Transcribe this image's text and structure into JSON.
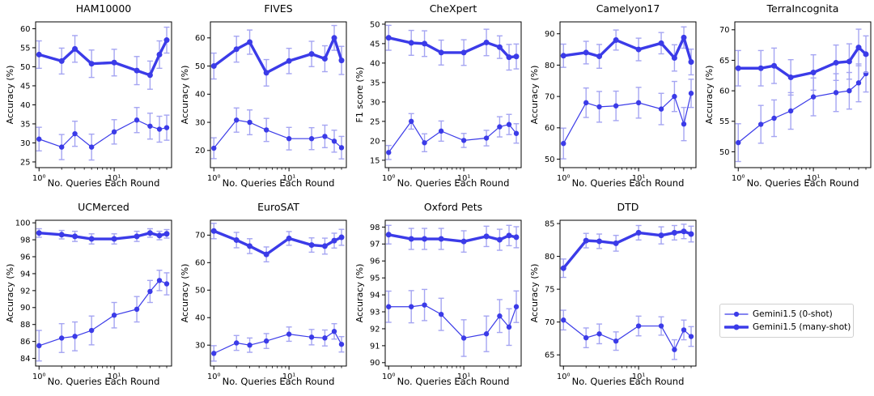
{
  "figure": {
    "xscale": "log",
    "xlim": [
      0.9,
      58
    ],
    "x_major_ticks": [
      {
        "value": 1,
        "label": "10⁰"
      },
      {
        "value": 10,
        "label": "10¹"
      }
    ],
    "x_minor_ticks": [
      2,
      3,
      4,
      5,
      6,
      7,
      8,
      9,
      20,
      30,
      40,
      50
    ]
  },
  "colors": {
    "line": "#3b3be8",
    "errorbar": "#a5a5f2",
    "axis": "#000000",
    "text": "#000000",
    "legend_border": "#d0d0d0"
  },
  "legend": {
    "items": [
      {
        "label": "Gemini1.5 (0-shot)",
        "style": "thin"
      },
      {
        "label": "Gemini1.5 (many-shot)",
        "style": "thick"
      }
    ]
  },
  "chart_data": [
    {
      "type": "line",
      "title": "HAM10000",
      "ylabel": "Accuracy (%)",
      "xlabel": "No. Queries Each Round",
      "x": [
        1,
        2,
        3,
        5,
        10,
        20,
        30,
        40,
        50
      ],
      "ylim": [
        23.5,
        61.8
      ],
      "yticks": [
        25,
        30,
        35,
        40,
        45,
        50,
        55,
        60
      ],
      "series": [
        {
          "name": "Gemini1.5 (0-shot)",
          "style": "thin",
          "values": [
            31.0,
            28.9,
            32.4,
            28.9,
            32.9,
            36.0,
            34.4,
            33.6,
            34.0
          ],
          "err": [
            3.1,
            3.3,
            3.3,
            3.4,
            3.2,
            3.3,
            3.4,
            3.4,
            3.3
          ]
        },
        {
          "name": "Gemini1.5 (many-shot)",
          "style": "thick",
          "values": [
            53.2,
            51.5,
            54.7,
            50.8,
            51.1,
            49.0,
            47.8,
            53.2,
            57.0
          ],
          "err": [
            3.6,
            3.4,
            3.5,
            3.6,
            3.5,
            3.7,
            3.7,
            3.6,
            3.4
          ]
        }
      ]
    },
    {
      "type": "line",
      "title": "FIVES",
      "ylabel": "Accuracy (%)",
      "xlabel": "No. Queries Each Round",
      "x": [
        1,
        2,
        3,
        5,
        10,
        20,
        30,
        40,
        50
      ],
      "ylim": [
        13.9,
        65.7
      ],
      "yticks": [
        20,
        30,
        40,
        50,
        60
      ],
      "series": [
        {
          "name": "Gemini1.5 (0-shot)",
          "style": "thin",
          "values": [
            20.8,
            30.8,
            30.0,
            27.3,
            24.2,
            24.2,
            25.0,
            23.3,
            21.0
          ],
          "err": [
            3.7,
            4.3,
            4.4,
            4.1,
            4.0,
            3.9,
            4.0,
            3.9,
            4.0
          ]
        },
        {
          "name": "Gemini1.5 (many-shot)",
          "style": "thick",
          "values": [
            50.0,
            56.0,
            58.5,
            47.6,
            51.8,
            54.3,
            52.6,
            60.0,
            52.0
          ],
          "err": [
            4.6,
            4.6,
            4.3,
            4.7,
            4.5,
            4.5,
            4.6,
            4.4,
            5.0
          ]
        }
      ]
    },
    {
      "type": "line",
      "title": "CheXpert",
      "ylabel": "F1 score (%)",
      "xlabel": "No. Queries Each Round",
      "x": [
        1,
        2,
        3,
        5,
        10,
        20,
        30,
        40,
        50
      ],
      "ylim": [
        13.1,
        50.6
      ],
      "yticks": [
        15,
        20,
        25,
        30,
        35,
        40,
        45,
        50
      ],
      "series": [
        {
          "name": "Gemini1.5 (0-shot)",
          "style": "thin",
          "values": [
            17.0,
            25.0,
            19.5,
            22.5,
            20.1,
            20.7,
            23.6,
            24.2,
            21.9
          ],
          "err": [
            1.8,
            2.0,
            2.3,
            2.6,
            1.8,
            2.0,
            2.6,
            2.6,
            2.5
          ]
        },
        {
          "name": "Gemini1.5 (many-shot)",
          "style": "thick",
          "values": [
            46.5,
            45.2,
            45.0,
            42.7,
            42.7,
            45.3,
            44.1,
            41.5,
            41.7
          ],
          "err": [
            3.2,
            3.2,
            3.3,
            3.2,
            3.3,
            3.4,
            2.9,
            3.3,
            3.2
          ]
        }
      ]
    },
    {
      "type": "line",
      "title": "Camelyon17",
      "ylabel": "Accuracy (%)",
      "xlabel": "No. Queries Each Round",
      "x": [
        1,
        2,
        3,
        5,
        10,
        20,
        30,
        40,
        50
      ],
      "ylim": [
        47.3,
        93.8
      ],
      "yticks": [
        50,
        60,
        70,
        80,
        90
      ],
      "series": [
        {
          "name": "Gemini1.5 (0-shot)",
          "style": "thin",
          "values": [
            55.0,
            68.0,
            66.7,
            67.0,
            68.0,
            66.0,
            70.0,
            61.2,
            71.0
          ],
          "err": [
            4.9,
            4.7,
            4.9,
            4.7,
            4.9,
            5.0,
            4.8,
            5.3,
            4.5
          ]
        },
        {
          "name": "Gemini1.5 (many-shot)",
          "style": "thick",
          "values": [
            83.0,
            84.0,
            82.8,
            88.0,
            85.0,
            87.0,
            82.3,
            88.8,
            81.0
          ],
          "err": [
            3.7,
            3.6,
            3.8,
            3.2,
            3.6,
            3.4,
            4.2,
            3.4,
            4.1
          ]
        }
      ]
    },
    {
      "type": "line",
      "title": "TerraIncognita",
      "ylabel": "Accuracy (%)",
      "xlabel": "No. Queries Each Round",
      "x": [
        1,
        2,
        3,
        5,
        10,
        20,
        30,
        40,
        50
      ],
      "ylim": [
        47.4,
        71.3
      ],
      "yticks": [
        50,
        55,
        60,
        65,
        70
      ],
      "series": [
        {
          "name": "Gemini1.5 (0-shot)",
          "style": "thin",
          "values": [
            51.5,
            54.5,
            55.5,
            56.7,
            59.0,
            59.7,
            60.0,
            61.3,
            62.8
          ],
          "err": [
            3.1,
            3.1,
            3.0,
            3.0,
            3.1,
            3.1,
            3.0,
            3.1,
            3.0
          ]
        },
        {
          "name": "Gemini1.5 (many-shot)",
          "style": "thick",
          "values": [
            63.7,
            63.7,
            64.1,
            62.2,
            63.0,
            64.6,
            64.8,
            67.1,
            66.0
          ],
          "err": [
            2.9,
            2.9,
            2.9,
            2.9,
            2.9,
            2.9,
            2.9,
            3.0,
            3.0
          ]
        }
      ]
    },
    {
      "type": "line",
      "title": "UCMerced",
      "ylabel": "Accuracy (%)",
      "xlabel": "No. Queries Each Round",
      "x": [
        1,
        2,
        3,
        5,
        10,
        20,
        30,
        40,
        50
      ],
      "ylim": [
        83.1,
        100.3
      ],
      "yticks": [
        84,
        86,
        88,
        90,
        92,
        94,
        96,
        98,
        100
      ],
      "series": [
        {
          "name": "Gemini1.5 (0-shot)",
          "style": "thin",
          "values": [
            85.5,
            86.4,
            86.6,
            87.3,
            89.1,
            89.8,
            91.9,
            93.2,
            92.8
          ],
          "err": [
            1.8,
            1.7,
            1.7,
            1.7,
            1.5,
            1.5,
            1.3,
            1.2,
            1.3
          ]
        },
        {
          "name": "Gemini1.5 (many-shot)",
          "style": "thick",
          "values": [
            98.8,
            98.6,
            98.4,
            98.1,
            98.1,
            98.4,
            98.8,
            98.5,
            98.7
          ],
          "err": [
            0.5,
            0.5,
            0.6,
            0.6,
            0.6,
            0.6,
            0.5,
            0.5,
            0.5
          ]
        }
      ]
    },
    {
      "type": "line",
      "title": "EuroSAT",
      "ylabel": "Accuracy (%)",
      "xlabel": "No. Queries Each Round",
      "x": [
        1,
        2,
        3,
        5,
        10,
        20,
        30,
        40,
        50
      ],
      "ylim": [
        22.4,
        75.4
      ],
      "yticks": [
        30,
        40,
        50,
        60,
        70
      ],
      "series": [
        {
          "name": "Gemini1.5 (0-shot)",
          "style": "thin",
          "values": [
            27.0,
            30.8,
            30.0,
            31.5,
            34.0,
            32.9,
            32.6,
            35.0,
            30.3
          ],
          "err": [
            2.8,
            2.7,
            2.6,
            2.7,
            2.6,
            2.8,
            2.9,
            2.8,
            2.8
          ]
        },
        {
          "name": "Gemini1.5 (many-shot)",
          "style": "thick",
          "values": [
            71.5,
            68.2,
            66.0,
            63.0,
            68.8,
            66.4,
            66.0,
            68.0,
            69.2
          ],
          "err": [
            2.8,
            2.8,
            2.7,
            2.7,
            2.5,
            2.6,
            2.9,
            2.7,
            2.9
          ]
        }
      ]
    },
    {
      "type": "line",
      "title": "Oxford Pets",
      "ylabel": "Accuracy (%)",
      "xlabel": "No. Queries Each Round",
      "x": [
        1,
        2,
        3,
        5,
        10,
        20,
        30,
        40,
        50
      ],
      "ylim": [
        89.8,
        98.4
      ],
      "yticks": [
        90,
        91,
        92,
        93,
        94,
        95,
        96,
        97,
        98
      ],
      "series": [
        {
          "name": "Gemini1.5 (0-shot)",
          "style": "thin",
          "values": [
            93.3,
            93.3,
            93.4,
            92.85,
            91.45,
            91.7,
            92.75,
            92.1,
            93.3
          ],
          "err": [
            0.92,
            0.95,
            0.92,
            0.95,
            1.08,
            1.05,
            0.97,
            1.08,
            0.93
          ]
        },
        {
          "name": "Gemini1.5 (many-shot)",
          "style": "thick",
          "values": [
            97.55,
            97.3,
            97.3,
            97.3,
            97.15,
            97.45,
            97.25,
            97.5,
            97.4
          ],
          "err": [
            0.55,
            0.62,
            0.62,
            0.62,
            0.63,
            0.6,
            0.62,
            0.6,
            0.62
          ]
        }
      ]
    },
    {
      "type": "line",
      "title": "DTD",
      "ylabel": "Accuracy (%)",
      "xlabel": "No. Queries Each Round",
      "x": [
        1,
        2,
        3,
        5,
        10,
        20,
        30,
        40,
        50
      ],
      "ylim": [
        63.3,
        85.5
      ],
      "yticks": [
        65,
        70,
        75,
        80,
        85
      ],
      "series": [
        {
          "name": "Gemini1.5 (0-shot)",
          "style": "thin",
          "values": [
            70.3,
            67.6,
            68.2,
            67.1,
            69.4,
            69.4,
            65.8,
            68.8,
            67.8
          ],
          "err": [
            1.5,
            1.5,
            1.5,
            1.4,
            1.5,
            1.4,
            1.5,
            1.5,
            1.5
          ]
        },
        {
          "name": "Gemini1.5 (many-shot)",
          "style": "thick",
          "values": [
            78.2,
            82.4,
            82.3,
            82.0,
            83.6,
            83.2,
            83.6,
            83.8,
            83.4
          ],
          "err": [
            1.4,
            1.1,
            1.1,
            1.2,
            1.1,
            1.3,
            1.1,
            1.1,
            1.2
          ]
        }
      ]
    }
  ]
}
